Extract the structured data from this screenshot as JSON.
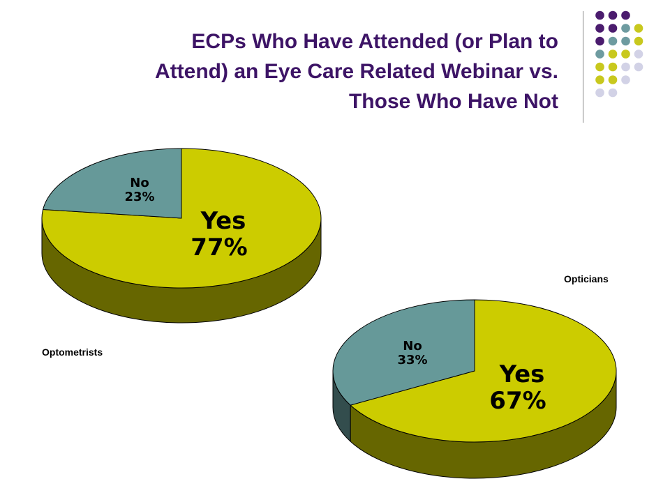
{
  "title_lines": [
    "ECPs Who Have Attended (or Plan to",
    "Attend) an Eye Care Related Webinar vs.",
    "Those Who Have Not"
  ],
  "colors": {
    "title": "#3d1466",
    "yes_top": "#cccc00",
    "yes_side": "#666600",
    "no_top": "#669999",
    "no_side": "#334d4d",
    "dot_purple": "#4b1c6e",
    "dot_teal": "#6e9ba0",
    "dot_olive": "#c8c81e",
    "dot_lavender": "#d2d2e6"
  },
  "chart_data": [
    {
      "type": "pie",
      "caption": "Optometrists",
      "slices": [
        {
          "label": "Yes",
          "value": 77,
          "value_text": "77%"
        },
        {
          "label": "No",
          "value": 23,
          "value_text": "23%"
        }
      ]
    },
    {
      "type": "pie",
      "caption": "Opticians",
      "slices": [
        {
          "label": "Yes",
          "value": 67,
          "value_text": "67%"
        },
        {
          "label": "No",
          "value": 33,
          "value_text": "33%"
        }
      ]
    }
  ]
}
